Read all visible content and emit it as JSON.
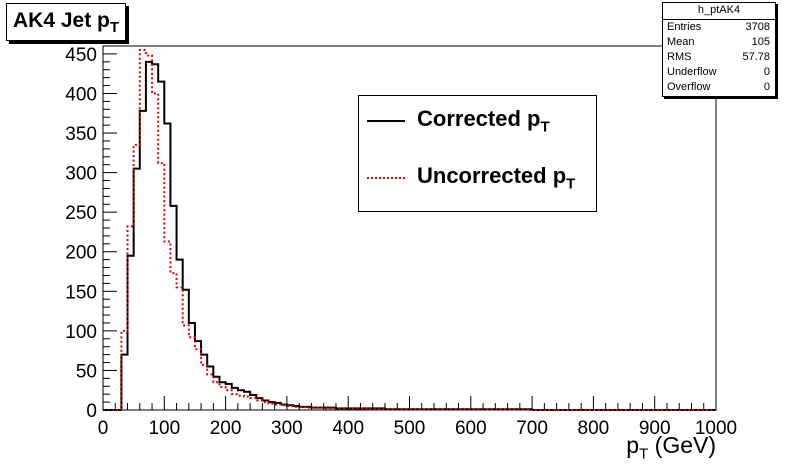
{
  "title": {
    "main": "AK4 Jet p",
    "sub": "T"
  },
  "stats": {
    "name": "h_ptAK4",
    "rows": [
      {
        "label": "Entries",
        "value": "3708"
      },
      {
        "label": "Mean",
        "value": "105"
      },
      {
        "label": "RMS",
        "value": "57.78"
      },
      {
        "label": "Underflow",
        "value": "0"
      },
      {
        "label": "Overflow",
        "value": "0"
      }
    ]
  },
  "legend": {
    "entries": [
      {
        "text": "Corrected p",
        "sub": "T"
      },
      {
        "text": "Uncorrected p",
        "sub": "T"
      }
    ]
  },
  "xaxis_title": {
    "main": "p",
    "sub": "T",
    "unit": " (GeV)"
  },
  "colors": {
    "corrected": "#000000",
    "uncorrected": "#e00000"
  },
  "chart_data": {
    "type": "histogram",
    "bin_width": 10,
    "x_start": 0,
    "xlim": [
      0,
      1000
    ],
    "ylim": [
      0,
      460
    ],
    "xticks": [
      0,
      100,
      200,
      300,
      400,
      500,
      600,
      700,
      800,
      900,
      1000
    ],
    "yticks": [
      0,
      50,
      100,
      150,
      200,
      250,
      300,
      350,
      400,
      450
    ],
    "series": [
      {
        "name": "Corrected p_T",
        "style": "solid",
        "values": [
          0,
          0,
          0,
          70,
          195,
          305,
          378,
          440,
          437,
          415,
          362,
          258,
          190,
          152,
          110,
          87,
          70,
          55,
          42,
          35,
          33,
          28,
          25,
          23,
          19,
          15,
          12,
          10,
          9,
          7,
          6,
          5,
          4,
          4,
          3,
          3,
          3,
          3,
          2,
          2,
          2,
          2,
          2,
          2,
          2,
          2,
          1,
          1,
          1,
          1,
          1,
          1,
          1,
          1,
          1,
          1,
          1,
          1,
          1,
          1,
          1,
          1,
          1,
          1,
          1,
          1,
          1,
          1,
          1,
          1,
          0,
          0,
          0,
          0,
          0,
          0,
          0,
          0,
          0,
          0,
          0,
          0,
          0,
          0,
          0,
          0,
          0,
          0,
          0,
          0,
          0,
          0,
          0,
          0,
          0,
          0,
          0,
          0,
          0,
          0
        ]
      },
      {
        "name": "Uncorrected p_T",
        "style": "dotted",
        "values": [
          0,
          0,
          0,
          100,
          232,
          335,
          455,
          448,
          400,
          312,
          213,
          173,
          155,
          107,
          92,
          77,
          57,
          45,
          35,
          29,
          25,
          20,
          18,
          17,
          15,
          12,
          10,
          8,
          7,
          6,
          5,
          4,
          4,
          3,
          3,
          3,
          2,
          2,
          2,
          2,
          2,
          2,
          2,
          1,
          1,
          1,
          1,
          1,
          1,
          1,
          1,
          1,
          1,
          1,
          1,
          1,
          1,
          1,
          1,
          1,
          1,
          1,
          1,
          1,
          1,
          1,
          1,
          1,
          1,
          1,
          0,
          0,
          0,
          0,
          0,
          0,
          0,
          0,
          0,
          0,
          0,
          0,
          0,
          0,
          0,
          0,
          0,
          0,
          0,
          0,
          0,
          0,
          0,
          0,
          0,
          0,
          0,
          0,
          0,
          0
        ]
      }
    ]
  }
}
